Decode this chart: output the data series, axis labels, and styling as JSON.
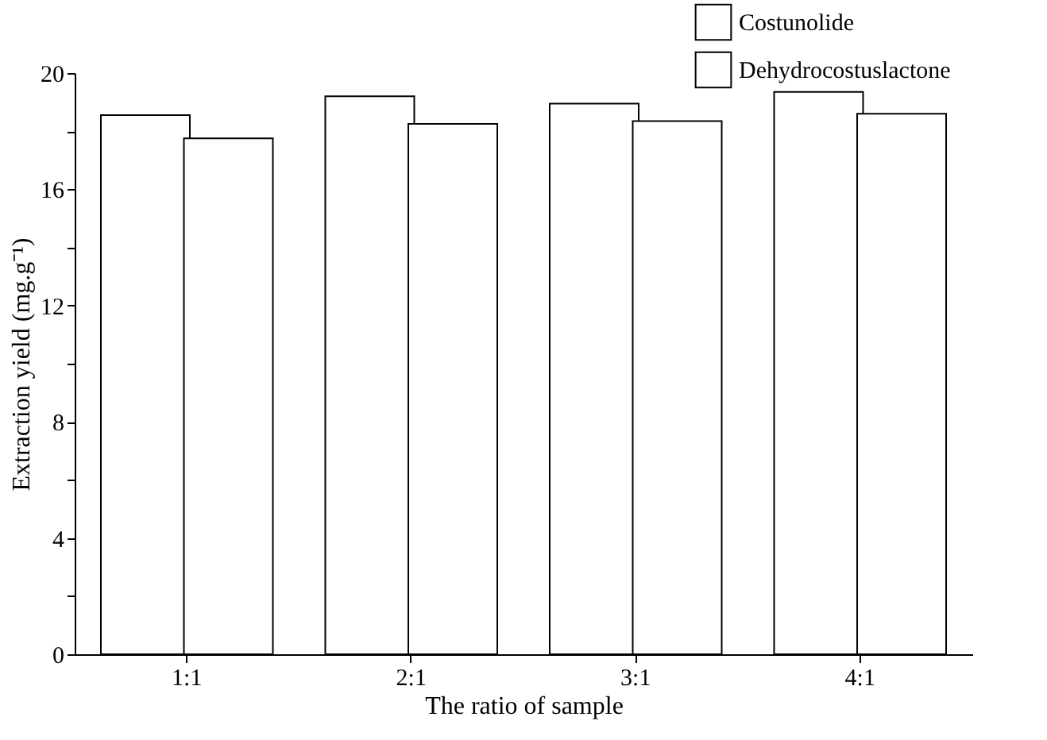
{
  "chart_data": {
    "type": "bar",
    "xlabel": "The ratio of sample",
    "ylabel": "Extraction yield (mg.g⁻¹)",
    "categories": [
      "1:1",
      "2:1",
      "3:1",
      "4:1"
    ],
    "series": [
      {
        "name": "Costunolide",
        "color": "#ffffff",
        "values": [
          18.55,
          19.2,
          18.95,
          19.35
        ]
      },
      {
        "name": "Dehydrocostuslactone",
        "color": "#ffffff",
        "values": [
          17.75,
          18.25,
          18.35,
          18.6
        ]
      }
    ],
    "ylim": [
      0,
      20
    ],
    "yticks": [
      0,
      {
        "value": 2,
        "label": null
      },
      4,
      {
        "value": 6,
        "label": null
      },
      8,
      {
        "value": 10,
        "label": null
      },
      12,
      {
        "value": 14,
        "label": null
      },
      16,
      {
        "value": 18,
        "label": null
      },
      20
    ],
    "grid": false,
    "legend": "top right"
  }
}
